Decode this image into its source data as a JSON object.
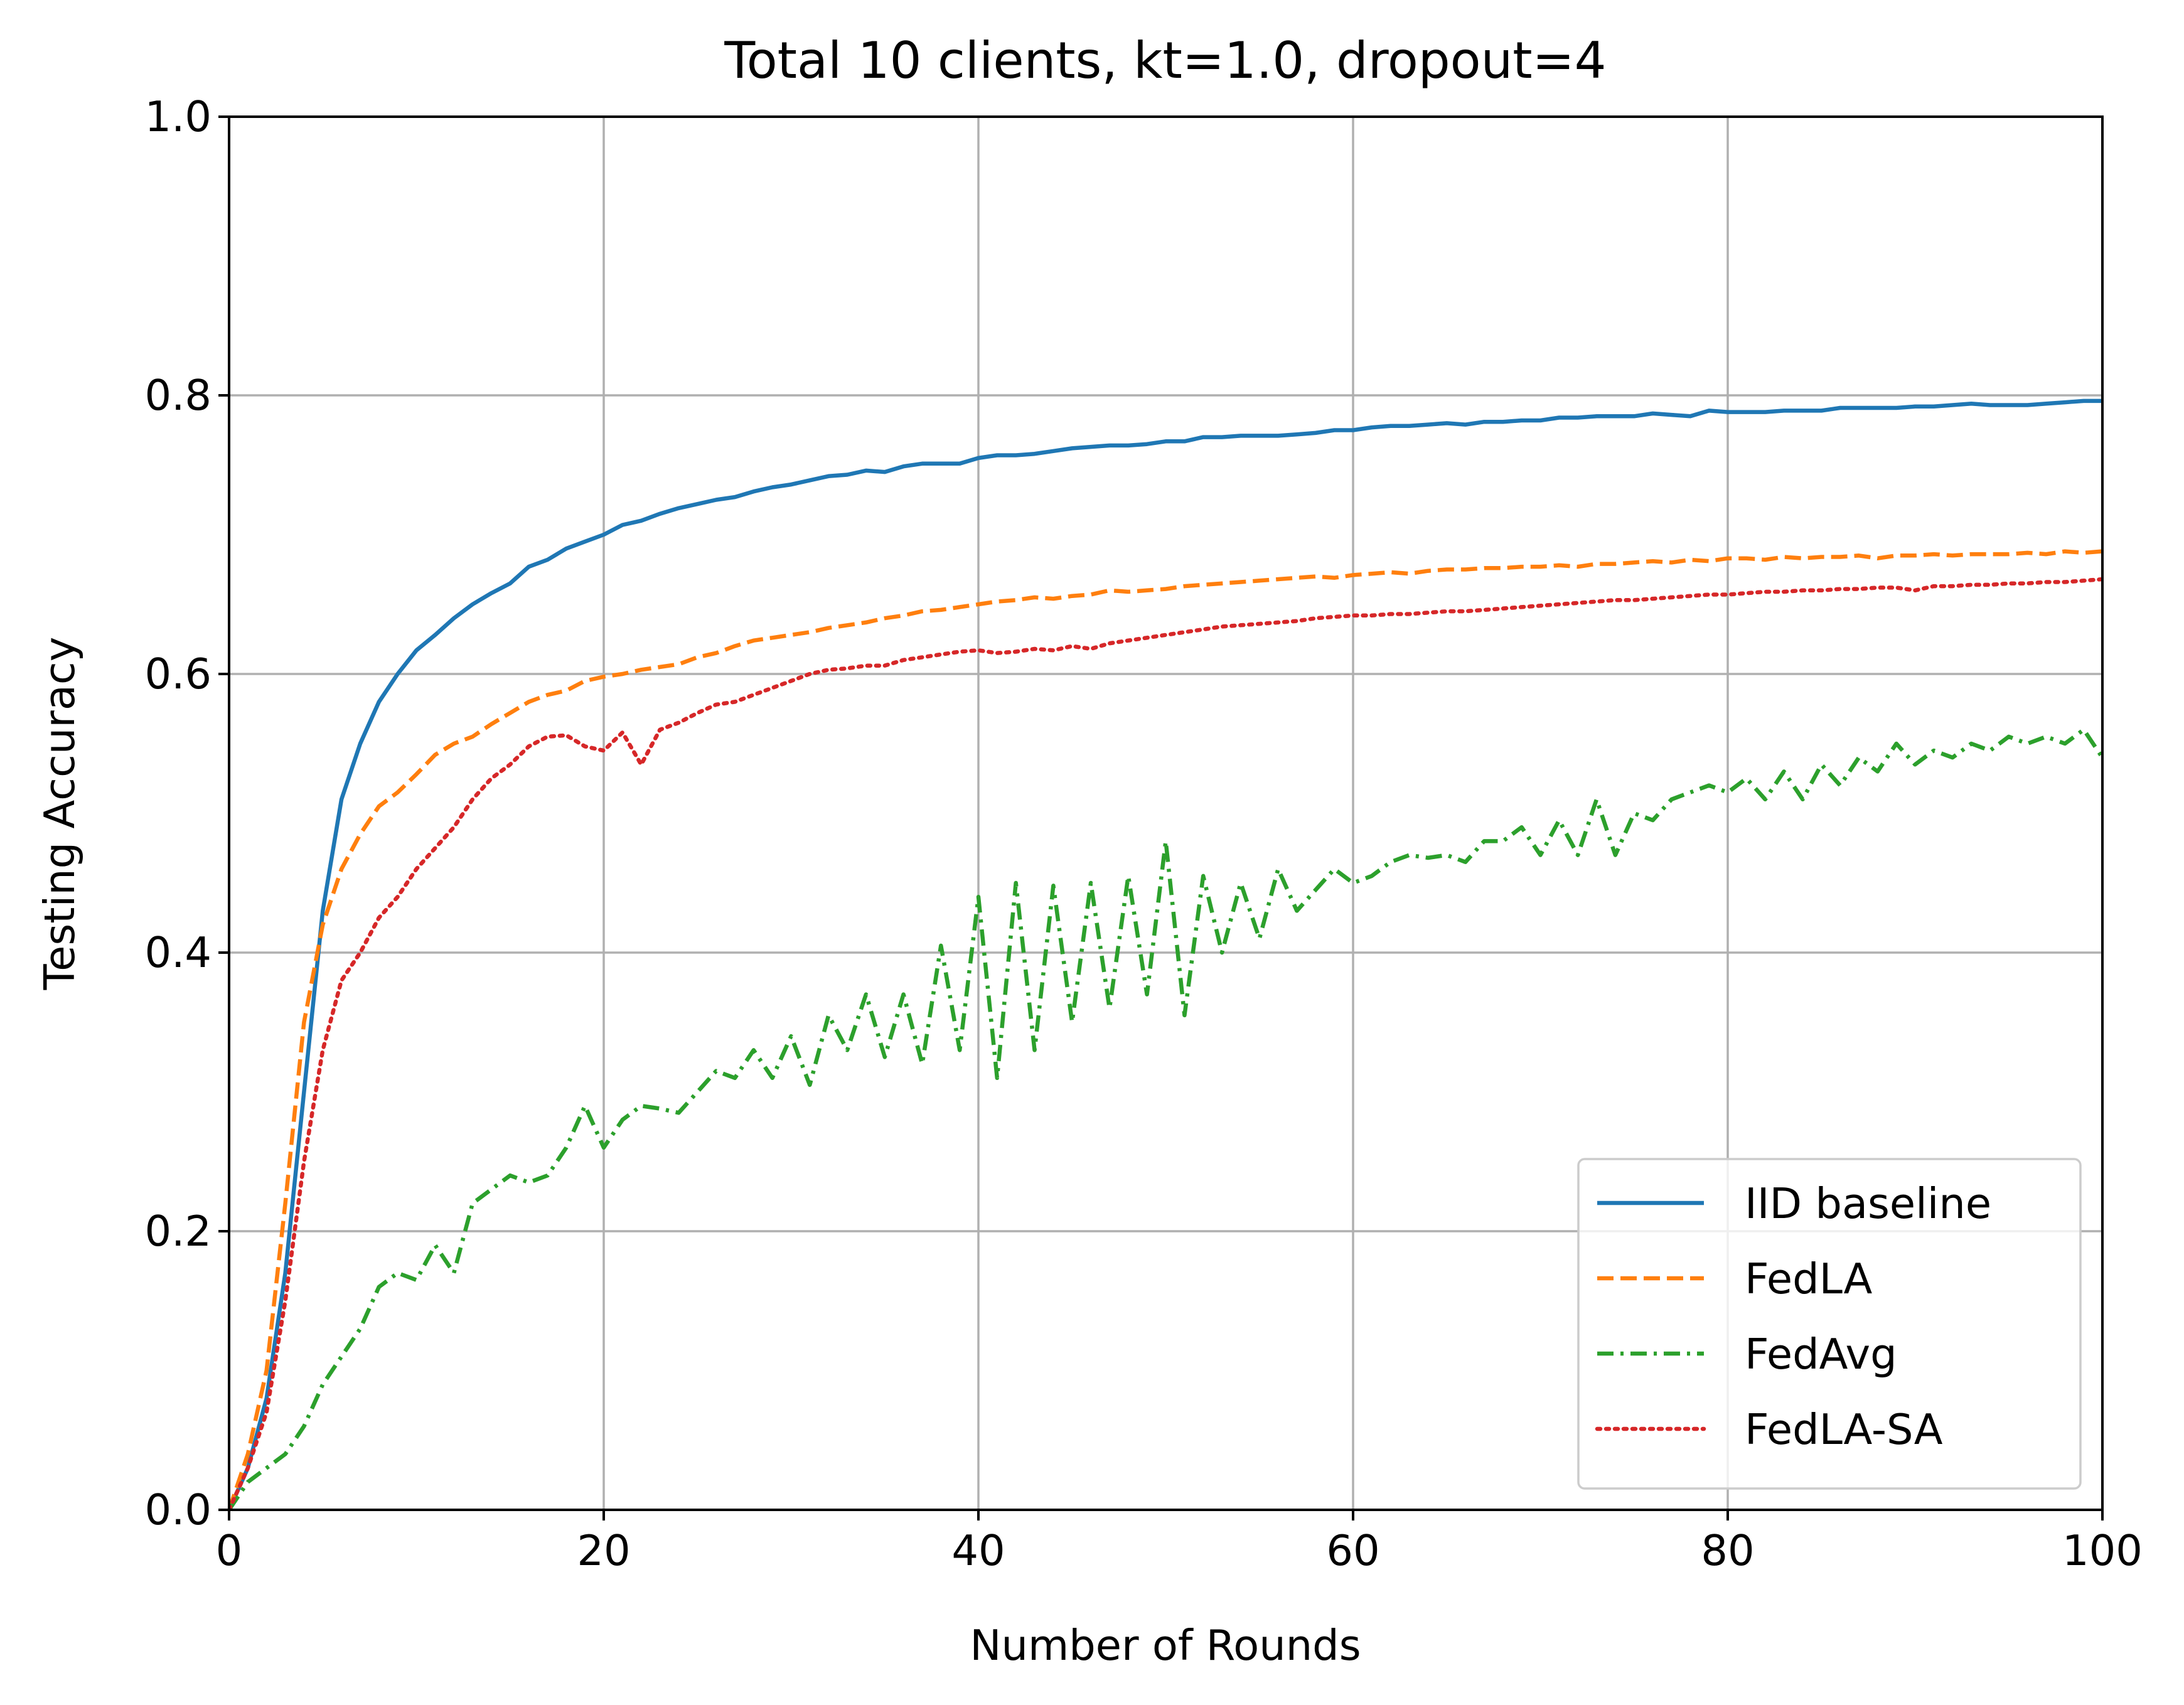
{
  "chart_data": {
    "type": "line",
    "title": "Total 10 clients, kt=1.0, dropout=4",
    "xlabel": "Number of Rounds",
    "ylabel": "Testing Accuracy",
    "xlim": [
      0,
      100
    ],
    "ylim": [
      0.0,
      1.0
    ],
    "xticks": [
      0,
      20,
      40,
      60,
      80,
      100
    ],
    "xtick_labels": [
      "0",
      "20",
      "40",
      "60",
      "80",
      "100"
    ],
    "yticks": [
      0.0,
      0.2,
      0.4,
      0.6,
      0.8,
      1.0
    ],
    "ytick_labels": [
      "0.0",
      "0.2",
      "0.4",
      "0.6",
      "0.8",
      "1.0"
    ],
    "grid": true,
    "legend_position": "lower-right",
    "series": [
      {
        "name": "IID baseline",
        "color": "#1f77b4",
        "style": "solid",
        "x": [
          0,
          1,
          2,
          3,
          4,
          5,
          6,
          7,
          8,
          9,
          10,
          11,
          12,
          13,
          14,
          15,
          16,
          17,
          18,
          19,
          20,
          21,
          22,
          23,
          24,
          25,
          26,
          27,
          28,
          29,
          30,
          31,
          32,
          33,
          34,
          35,
          36,
          37,
          38,
          39,
          40,
          41,
          42,
          43,
          44,
          45,
          46,
          47,
          48,
          49,
          50,
          51,
          52,
          53,
          54,
          55,
          56,
          57,
          58,
          59,
          60,
          61,
          62,
          63,
          64,
          65,
          66,
          67,
          68,
          69,
          70,
          71,
          72,
          73,
          74,
          75,
          76,
          77,
          78,
          79,
          80,
          81,
          82,
          83,
          84,
          85,
          86,
          87,
          88,
          89,
          90,
          91,
          92,
          93,
          94,
          95,
          96,
          97,
          98,
          99,
          100
        ],
        "y": [
          0.0,
          0.03,
          0.08,
          0.17,
          0.3,
          0.43,
          0.51,
          0.55,
          0.58,
          0.6,
          0.617,
          0.628,
          0.64,
          0.65,
          0.658,
          0.665,
          0.677,
          0.682,
          0.69,
          0.695,
          0.7,
          0.707,
          0.71,
          0.715,
          0.719,
          0.722,
          0.725,
          0.727,
          0.731,
          0.734,
          0.736,
          0.739,
          0.742,
          0.743,
          0.746,
          0.745,
          0.749,
          0.751,
          0.751,
          0.751,
          0.755,
          0.757,
          0.757,
          0.758,
          0.76,
          0.762,
          0.763,
          0.764,
          0.764,
          0.765,
          0.767,
          0.767,
          0.77,
          0.77,
          0.771,
          0.771,
          0.771,
          0.772,
          0.773,
          0.775,
          0.775,
          0.777,
          0.778,
          0.778,
          0.779,
          0.78,
          0.779,
          0.781,
          0.781,
          0.782,
          0.782,
          0.784,
          0.784,
          0.785,
          0.785,
          0.785,
          0.787,
          0.786,
          0.785,
          0.789,
          0.788,
          0.788,
          0.788,
          0.789,
          0.789,
          0.789,
          0.791,
          0.791,
          0.791,
          0.791,
          0.792,
          0.792,
          0.793,
          0.794,
          0.793,
          0.793,
          0.793,
          0.794,
          0.795,
          0.796,
          0.796
        ]
      },
      {
        "name": "FedLA",
        "color": "#ff7f0e",
        "style": "dashed",
        "x": [
          0,
          1,
          2,
          3,
          4,
          5,
          6,
          7,
          8,
          9,
          10,
          11,
          12,
          13,
          14,
          15,
          16,
          17,
          18,
          19,
          20,
          21,
          22,
          23,
          24,
          25,
          26,
          27,
          28,
          29,
          30,
          31,
          32,
          33,
          34,
          35,
          36,
          37,
          38,
          39,
          40,
          41,
          42,
          43,
          44,
          45,
          46,
          47,
          48,
          49,
          50,
          51,
          52,
          53,
          54,
          55,
          56,
          57,
          58,
          59,
          60,
          61,
          62,
          63,
          64,
          65,
          66,
          67,
          68,
          69,
          70,
          71,
          72,
          73,
          74,
          75,
          76,
          77,
          78,
          79,
          80,
          81,
          82,
          83,
          84,
          85,
          86,
          87,
          88,
          89,
          90,
          91,
          92,
          93,
          94,
          95,
          96,
          97,
          98,
          99,
          100
        ],
        "y": [
          0.0,
          0.04,
          0.1,
          0.22,
          0.35,
          0.42,
          0.46,
          0.485,
          0.505,
          0.515,
          0.528,
          0.542,
          0.55,
          0.555,
          0.564,
          0.572,
          0.58,
          0.585,
          0.588,
          0.595,
          0.598,
          0.6,
          0.603,
          0.605,
          0.607,
          0.612,
          0.615,
          0.62,
          0.624,
          0.626,
          0.628,
          0.63,
          0.633,
          0.635,
          0.637,
          0.64,
          0.642,
          0.645,
          0.646,
          0.648,
          0.65,
          0.652,
          0.653,
          0.655,
          0.654,
          0.656,
          0.657,
          0.66,
          0.659,
          0.66,
          0.661,
          0.663,
          0.664,
          0.665,
          0.666,
          0.667,
          0.668,
          0.669,
          0.67,
          0.669,
          0.671,
          0.672,
          0.673,
          0.672,
          0.674,
          0.675,
          0.675,
          0.676,
          0.676,
          0.677,
          0.677,
          0.678,
          0.677,
          0.679,
          0.679,
          0.68,
          0.681,
          0.68,
          0.682,
          0.681,
          0.683,
          0.683,
          0.682,
          0.684,
          0.683,
          0.684,
          0.684,
          0.685,
          0.683,
          0.685,
          0.685,
          0.686,
          0.685,
          0.686,
          0.686,
          0.686,
          0.687,
          0.686,
          0.688,
          0.687,
          0.688
        ]
      },
      {
        "name": "FedAvg",
        "color": "#2ca02c",
        "style": "dashdot",
        "x": [
          0,
          1,
          2,
          3,
          4,
          5,
          6,
          7,
          8,
          9,
          10,
          11,
          12,
          13,
          14,
          15,
          16,
          17,
          18,
          19,
          20,
          21,
          22,
          23,
          24,
          25,
          26,
          27,
          28,
          29,
          30,
          31,
          32,
          33,
          34,
          35,
          36,
          37,
          38,
          39,
          40,
          41,
          42,
          43,
          44,
          45,
          46,
          47,
          48,
          49,
          50,
          51,
          52,
          53,
          54,
          55,
          56,
          57,
          58,
          59,
          60,
          61,
          62,
          63,
          64,
          65,
          66,
          67,
          68,
          69,
          70,
          71,
          72,
          73,
          74,
          75,
          76,
          77,
          78,
          79,
          80,
          81,
          82,
          83,
          84,
          85,
          86,
          87,
          88,
          89,
          90,
          91,
          92,
          93,
          94,
          95,
          96,
          97,
          98,
          99,
          100
        ],
        "y": [
          0.0,
          0.02,
          0.03,
          0.04,
          0.06,
          0.09,
          0.11,
          0.13,
          0.16,
          0.17,
          0.165,
          0.19,
          0.17,
          0.22,
          0.23,
          0.24,
          0.235,
          0.24,
          0.26,
          0.29,
          0.26,
          0.28,
          0.29,
          0.288,
          0.285,
          0.3,
          0.315,
          0.31,
          0.33,
          0.31,
          0.34,
          0.305,
          0.355,
          0.33,
          0.37,
          0.325,
          0.37,
          0.32,
          0.405,
          0.33,
          0.44,
          0.31,
          0.45,
          0.33,
          0.448,
          0.35,
          0.45,
          0.36,
          0.455,
          0.37,
          0.48,
          0.355,
          0.455,
          0.4,
          0.45,
          0.41,
          0.46,
          0.43,
          0.445,
          0.46,
          0.45,
          0.455,
          0.465,
          0.47,
          0.468,
          0.47,
          0.465,
          0.48,
          0.48,
          0.49,
          0.47,
          0.495,
          0.47,
          0.51,
          0.47,
          0.5,
          0.495,
          0.51,
          0.515,
          0.52,
          0.515,
          0.525,
          0.51,
          0.53,
          0.51,
          0.535,
          0.52,
          0.54,
          0.53,
          0.55,
          0.535,
          0.545,
          0.54,
          0.55,
          0.545,
          0.555,
          0.55,
          0.555,
          0.55,
          0.56,
          0.54
        ]
      },
      {
        "name": "FedLA-SA",
        "color": "#d62728",
        "style": "dotted",
        "x": [
          0,
          1,
          2,
          3,
          4,
          5,
          6,
          7,
          8,
          9,
          10,
          11,
          12,
          13,
          14,
          15,
          16,
          17,
          18,
          19,
          20,
          21,
          22,
          23,
          24,
          25,
          26,
          27,
          28,
          29,
          30,
          31,
          32,
          33,
          34,
          35,
          36,
          37,
          38,
          39,
          40,
          41,
          42,
          43,
          44,
          45,
          46,
          47,
          48,
          49,
          50,
          51,
          52,
          53,
          54,
          55,
          56,
          57,
          58,
          59,
          60,
          61,
          62,
          63,
          64,
          65,
          66,
          67,
          68,
          69,
          70,
          71,
          72,
          73,
          74,
          75,
          76,
          77,
          78,
          79,
          80,
          81,
          82,
          83,
          84,
          85,
          86,
          87,
          88,
          89,
          90,
          91,
          92,
          93,
          94,
          95,
          96,
          97,
          98,
          99,
          100
        ],
        "y": [
          0.0,
          0.03,
          0.07,
          0.15,
          0.25,
          0.33,
          0.38,
          0.4,
          0.425,
          0.44,
          0.46,
          0.475,
          0.49,
          0.51,
          0.525,
          0.535,
          0.548,
          0.555,
          0.556,
          0.548,
          0.545,
          0.558,
          0.535,
          0.56,
          0.565,
          0.572,
          0.578,
          0.58,
          0.585,
          0.59,
          0.595,
          0.6,
          0.603,
          0.604,
          0.606,
          0.606,
          0.61,
          0.612,
          0.614,
          0.616,
          0.617,
          0.615,
          0.616,
          0.618,
          0.617,
          0.62,
          0.618,
          0.622,
          0.624,
          0.626,
          0.628,
          0.63,
          0.632,
          0.634,
          0.635,
          0.636,
          0.637,
          0.638,
          0.64,
          0.641,
          0.642,
          0.642,
          0.643,
          0.643,
          0.644,
          0.645,
          0.645,
          0.646,
          0.647,
          0.648,
          0.649,
          0.65,
          0.651,
          0.652,
          0.653,
          0.653,
          0.654,
          0.655,
          0.656,
          0.657,
          0.657,
          0.658,
          0.659,
          0.659,
          0.66,
          0.66,
          0.661,
          0.661,
          0.662,
          0.662,
          0.66,
          0.663,
          0.663,
          0.664,
          0.664,
          0.665,
          0.665,
          0.666,
          0.666,
          0.667,
          0.668
        ]
      }
    ]
  }
}
